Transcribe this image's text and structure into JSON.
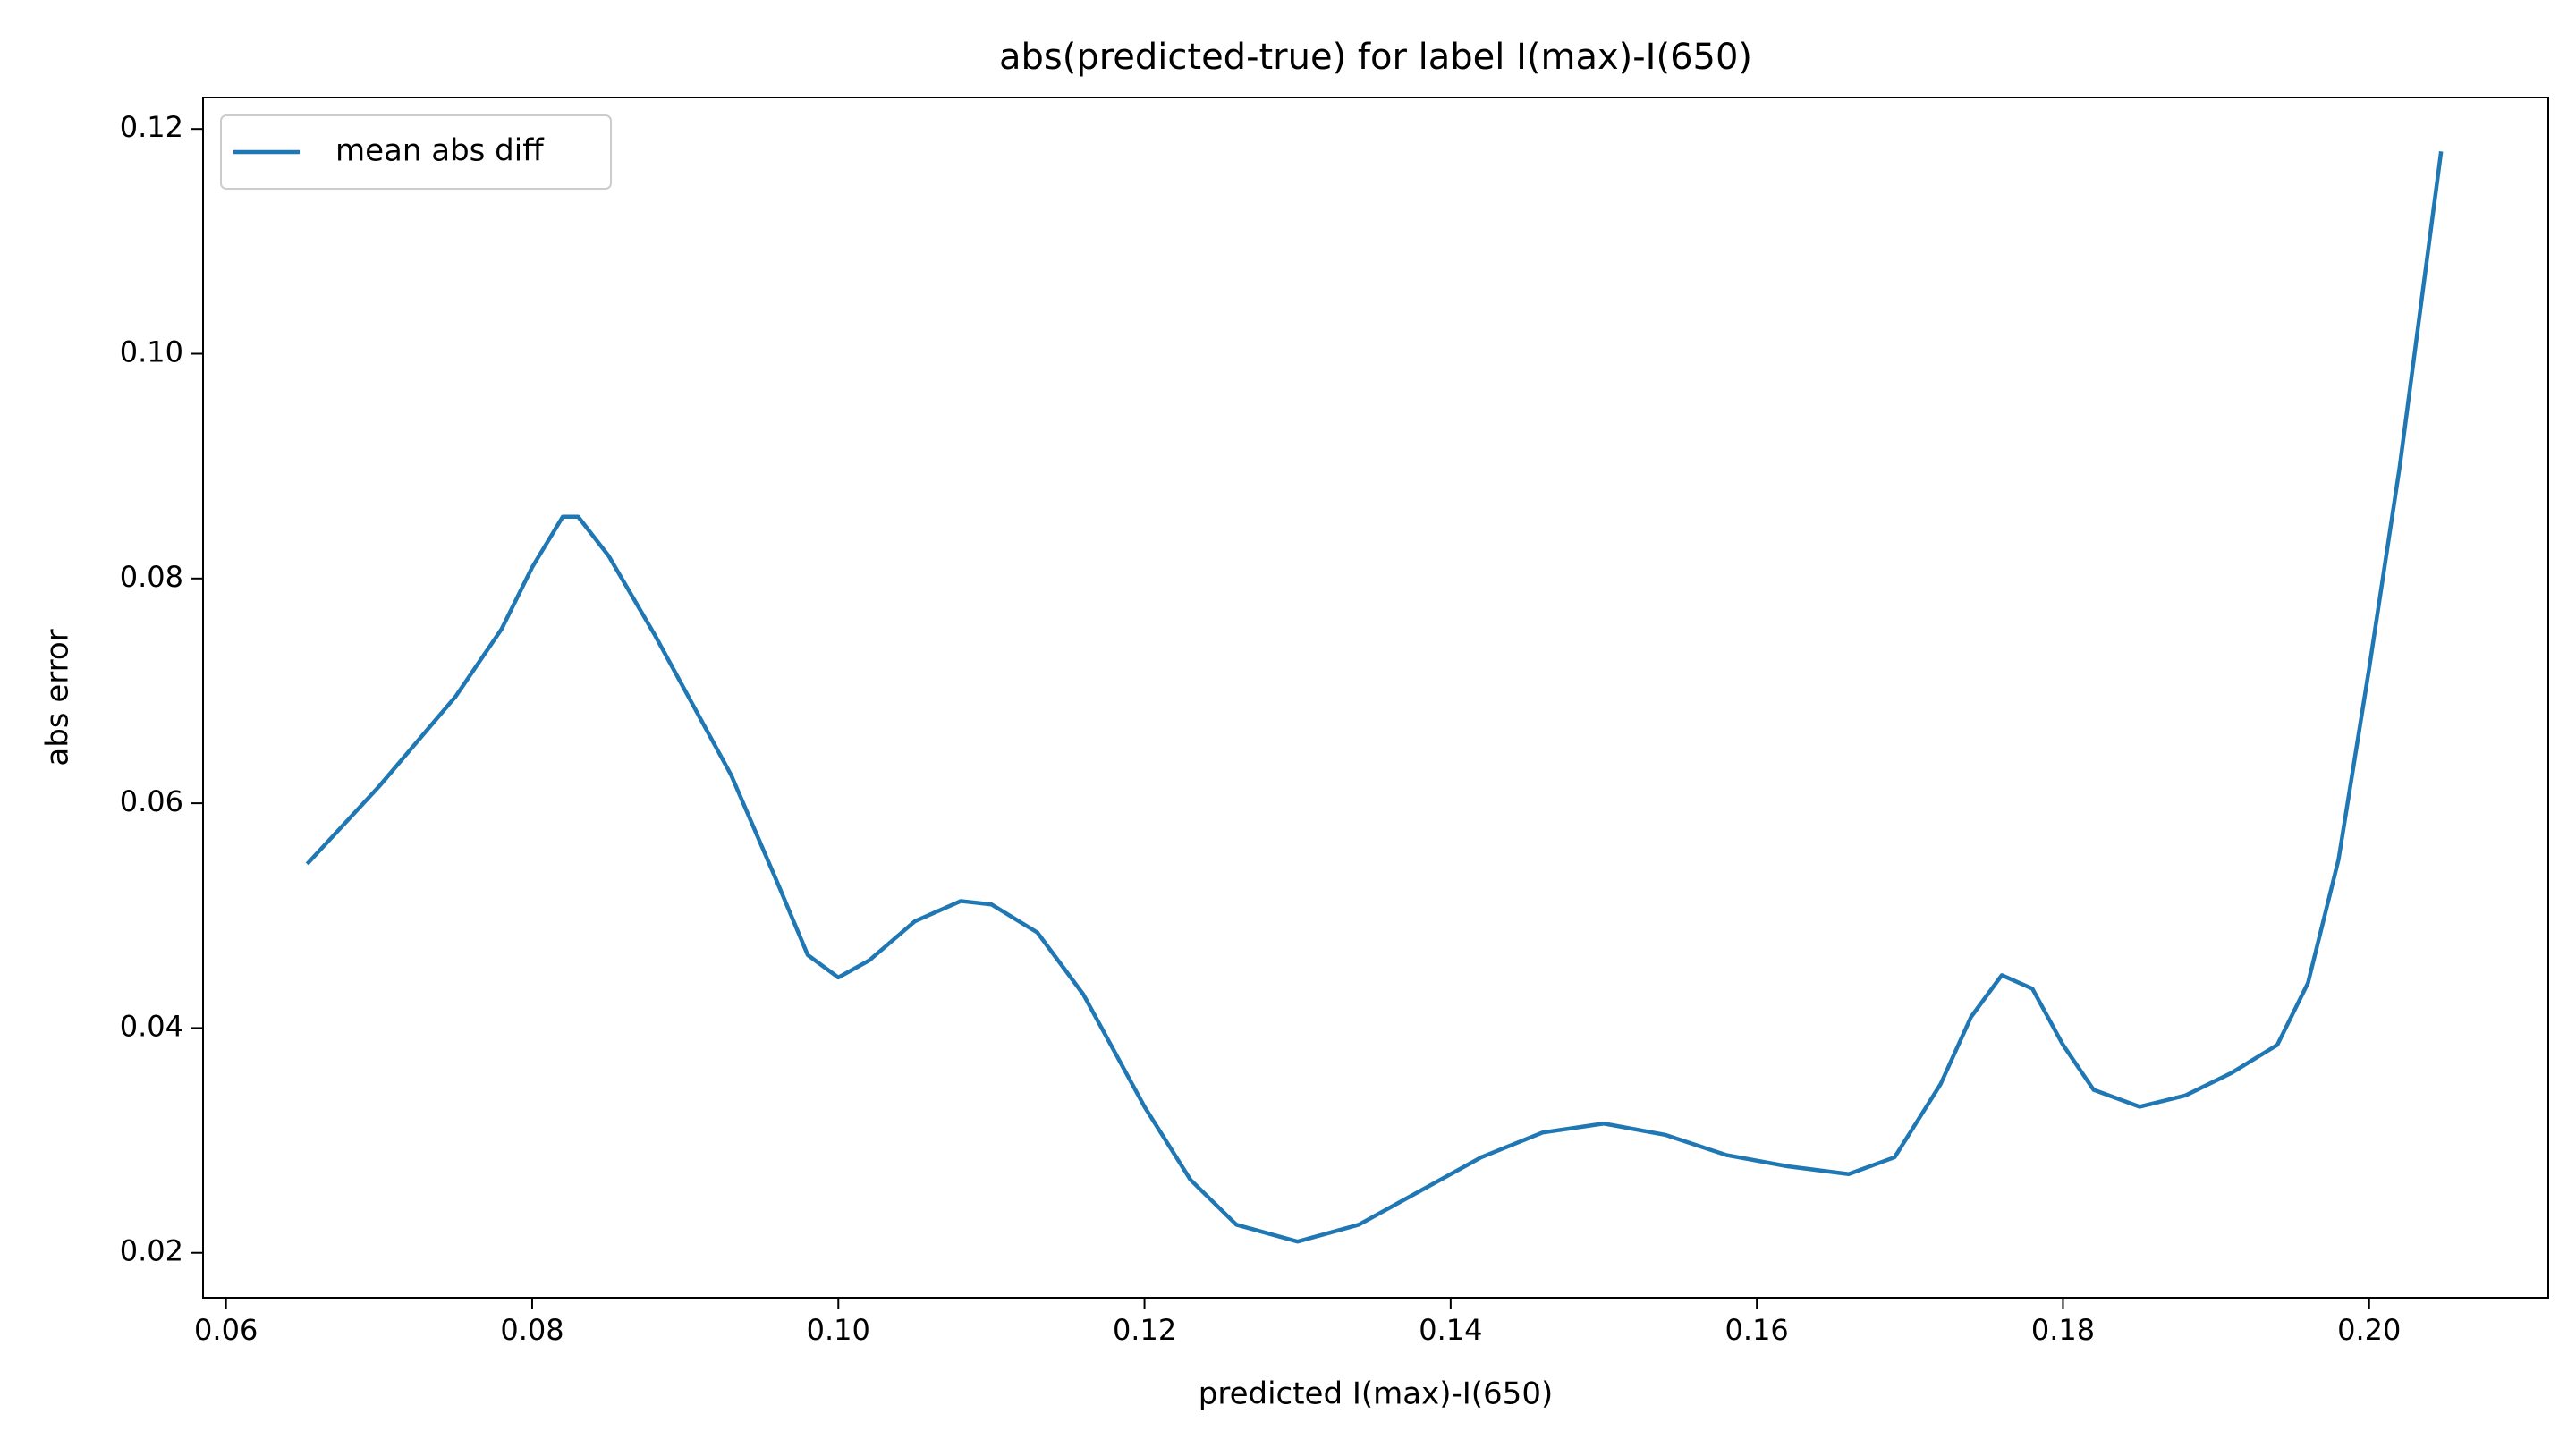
{
  "chart_data": {
    "type": "line",
    "title": "abs(predicted-true) for label I(max)-I(650)",
    "x_label": "predicted I(max)-I(650)",
    "y_label": "abs error",
    "x": [
      0.0653,
      0.07,
      0.075,
      0.078,
      0.08,
      0.082,
      0.083,
      0.085,
      0.088,
      0.09,
      0.093,
      0.096,
      0.098,
      0.1,
      0.102,
      0.105,
      0.108,
      0.11,
      0.113,
      0.116,
      0.12,
      0.123,
      0.126,
      0.13,
      0.134,
      0.138,
      0.142,
      0.146,
      0.15,
      0.154,
      0.158,
      0.162,
      0.166,
      0.169,
      0.172,
      0.174,
      0.176,
      0.178,
      0.18,
      0.182,
      0.185,
      0.188,
      0.191,
      0.194,
      0.196,
      0.198,
      0.2,
      0.202,
      0.2047
    ],
    "series": [
      {
        "name": "mean abs diff",
        "color": "#1f77b4",
        "values": [
          0.0546,
          0.0615,
          0.0695,
          0.0755,
          0.081,
          0.0855,
          0.0855,
          0.082,
          0.075,
          0.07,
          0.0625,
          0.053,
          0.0465,
          0.0445,
          0.046,
          0.0495,
          0.0513,
          0.051,
          0.0485,
          0.043,
          0.033,
          0.0265,
          0.0225,
          0.021,
          0.0225,
          0.0255,
          0.0285,
          0.0307,
          0.0315,
          0.0305,
          0.0287,
          0.0277,
          0.027,
          0.0285,
          0.035,
          0.041,
          0.0447,
          0.0435,
          0.0385,
          0.0345,
          0.033,
          0.034,
          0.036,
          0.0385,
          0.044,
          0.055,
          0.072,
          0.09,
          0.118
        ]
      }
    ],
    "xlim": [
      0.0585,
      0.2117
    ],
    "ylim": [
      0.016,
      0.1228
    ],
    "xticks": [
      0.06,
      0.08,
      {
        "value": 0.1,
        "label": "0.10"
      },
      0.12,
      0.14,
      0.16,
      0.18,
      {
        "value": 0.2,
        "label": "0.20"
      }
    ],
    "yticks": [
      0.02,
      0.04,
      0.06,
      0.08,
      {
        "value": 0.1,
        "label": "0.10"
      },
      0.12
    ],
    "grid": false,
    "legend": "upper left"
  }
}
